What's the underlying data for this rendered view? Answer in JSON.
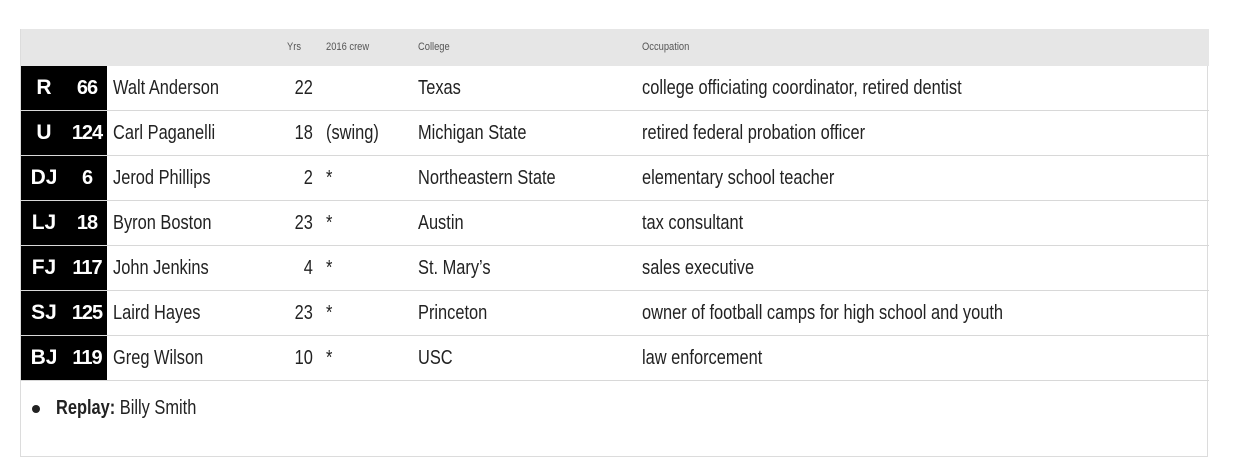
{
  "headers": {
    "yrs": "Yrs",
    "crew": "2016 crew",
    "college": "College",
    "occupation": "Occupation"
  },
  "rows": [
    {
      "pos": "R",
      "num": "66",
      "name": "Walt Anderson",
      "yrs": "22",
      "crew": "",
      "college": "Texas",
      "occupation": "college officiating coordinator, retired dentist"
    },
    {
      "pos": "U",
      "num": "124",
      "name": "Carl Paganelli",
      "yrs": "18",
      "crew": "(swing)",
      "college": "Michigan State",
      "occupation": "retired federal probation officer"
    },
    {
      "pos": "DJ",
      "num": "6",
      "name": "Jerod Phillips",
      "yrs": "2",
      "crew": "*",
      "college": "Northeastern State",
      "occupation": "elementary school teacher"
    },
    {
      "pos": "LJ",
      "num": "18",
      "name": "Byron Boston",
      "yrs": "23",
      "crew": "*",
      "college": "Austin",
      "occupation": "tax consultant"
    },
    {
      "pos": "FJ",
      "num": "117",
      "name": "John Jenkins",
      "yrs": "4",
      "crew": "*",
      "college": "St. Mary’s",
      "occupation": "sales executive"
    },
    {
      "pos": "SJ",
      "num": "125",
      "name": "Laird Hayes",
      "yrs": "23",
      "crew": "*",
      "college": "Princeton",
      "occupation": "owner of football camps for high school and youth"
    },
    {
      "pos": "BJ",
      "num": "119",
      "name": "Greg Wilson",
      "yrs": "10",
      "crew": "*",
      "college": "USC",
      "occupation": "law enforcement"
    }
  ],
  "footer": {
    "replay_label": "Replay:",
    "replay_value": " Billy Smith"
  }
}
